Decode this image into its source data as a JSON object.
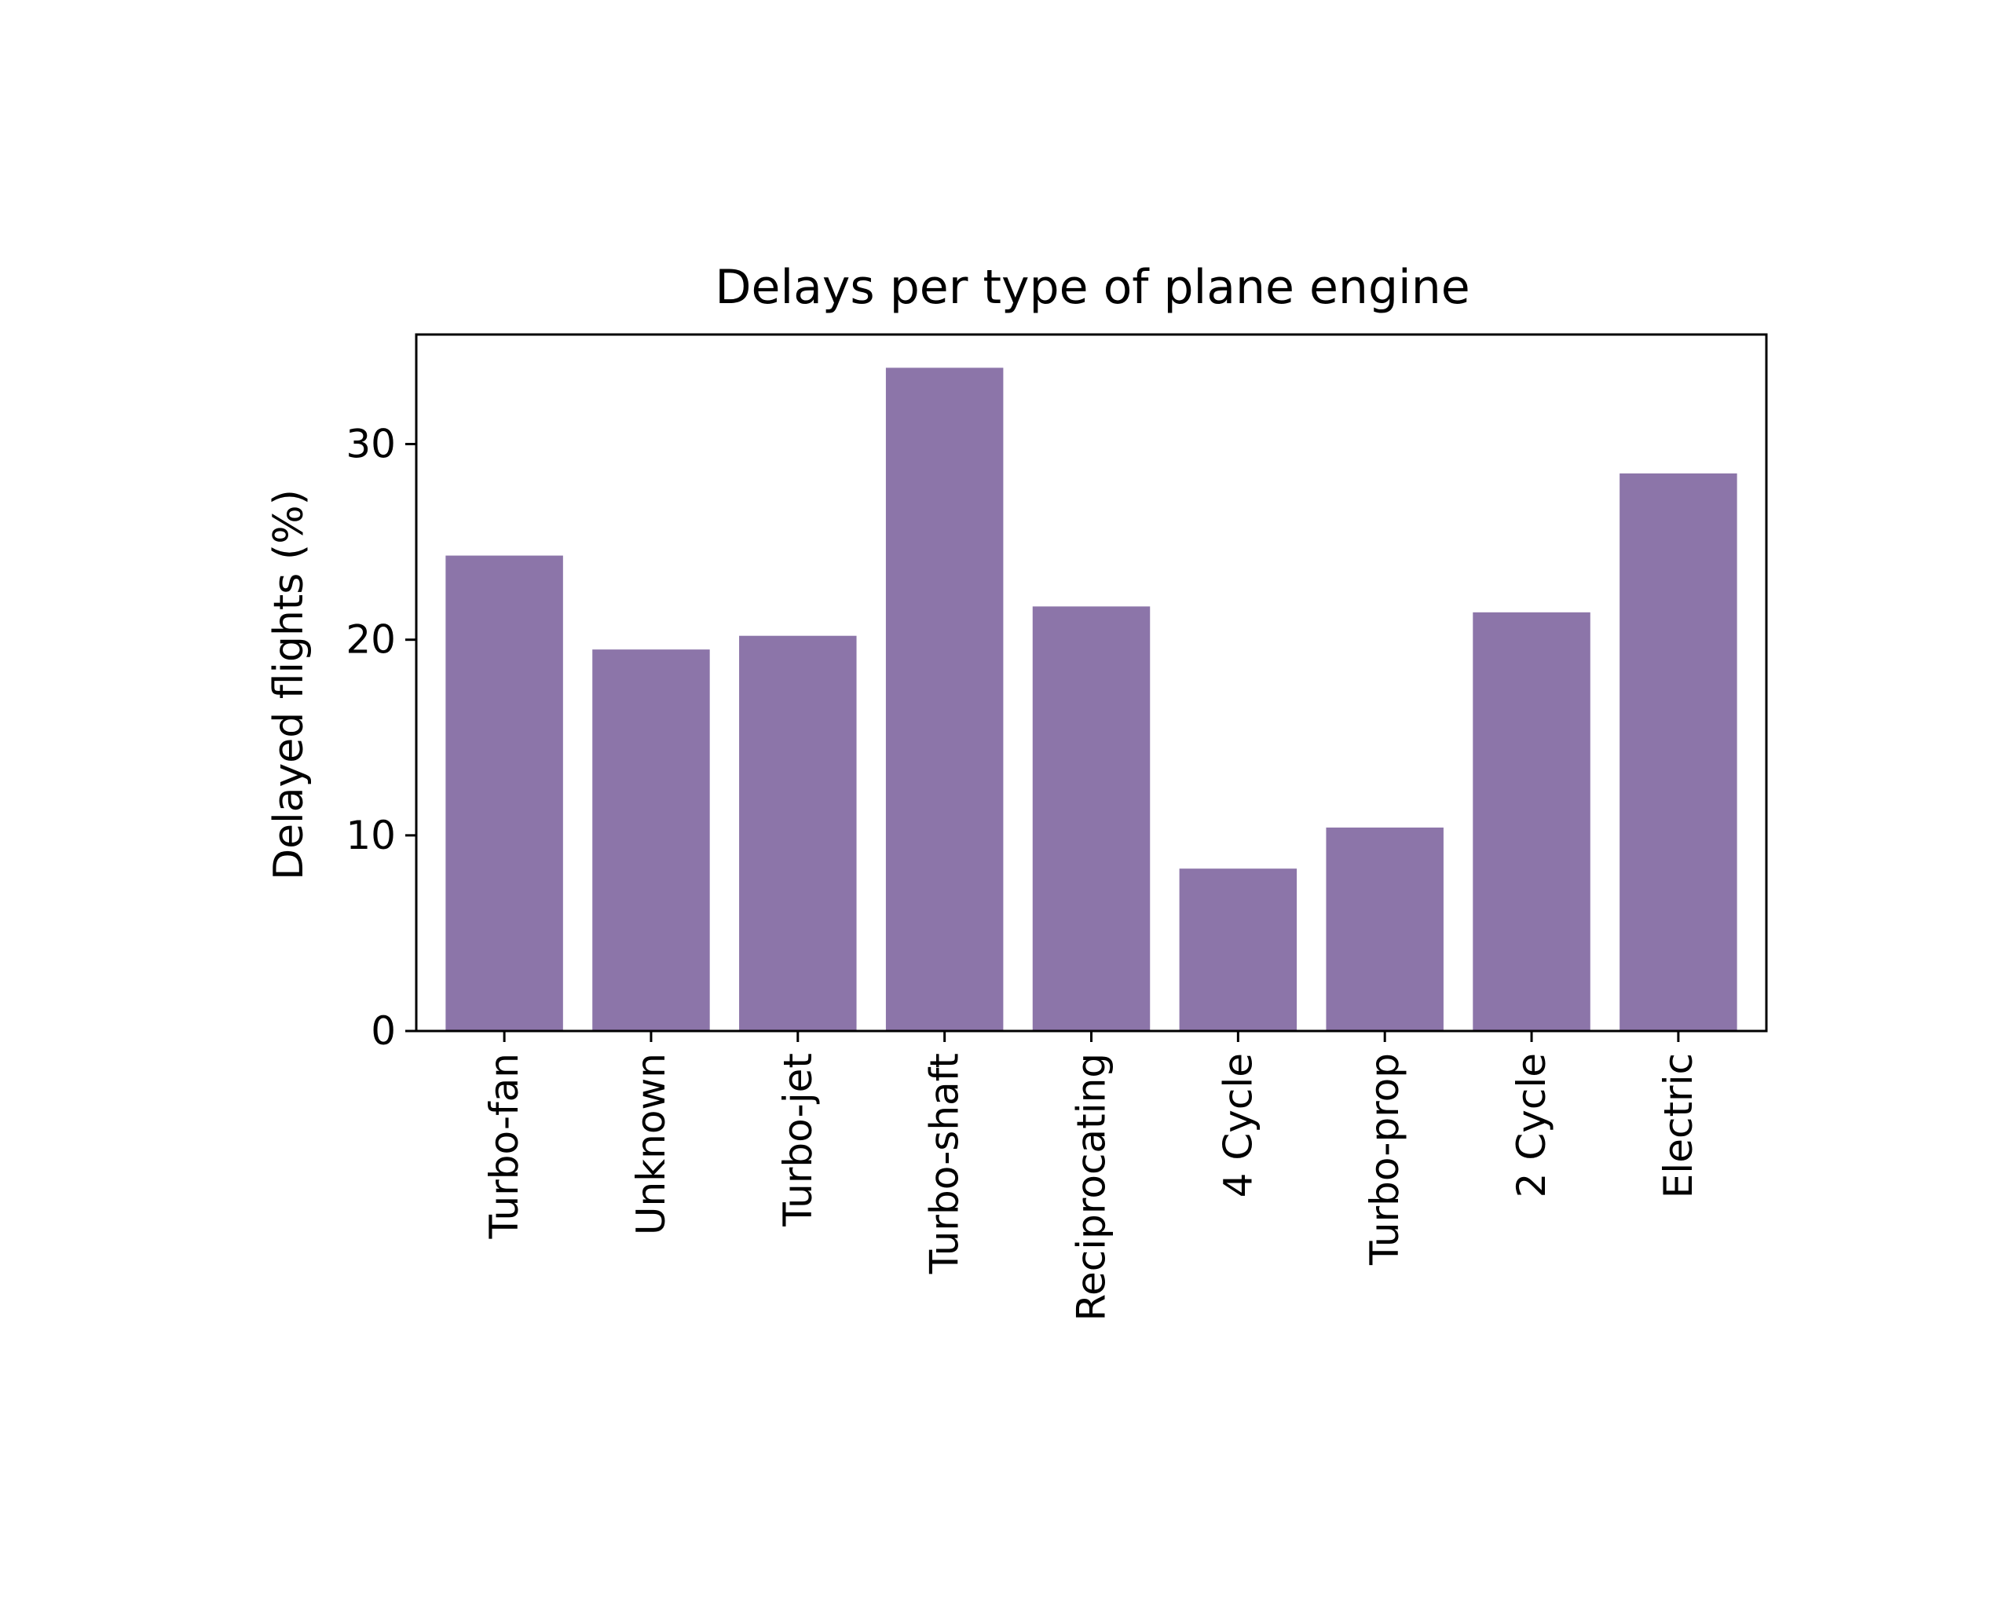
{
  "chart_data": {
    "type": "bar",
    "title": "Delays per type of plane engine",
    "xlabel": "",
    "ylabel": "Delayed flights (%)",
    "categories": [
      "Turbo-fan",
      "Unknown",
      "Turbo-jet",
      "Turbo-shaft",
      "Reciprocating",
      "4 Cycle",
      "Turbo-prop",
      "2 Cycle",
      "Electric"
    ],
    "values": [
      24.3,
      19.5,
      20.2,
      33.9,
      21.7,
      8.3,
      10.4,
      21.4,
      28.5
    ],
    "ylim": [
      0,
      35.6
    ],
    "yticks": [
      0,
      10,
      20,
      30
    ],
    "bar_color": "#8c75a9",
    "grid": false,
    "legend": "none"
  }
}
